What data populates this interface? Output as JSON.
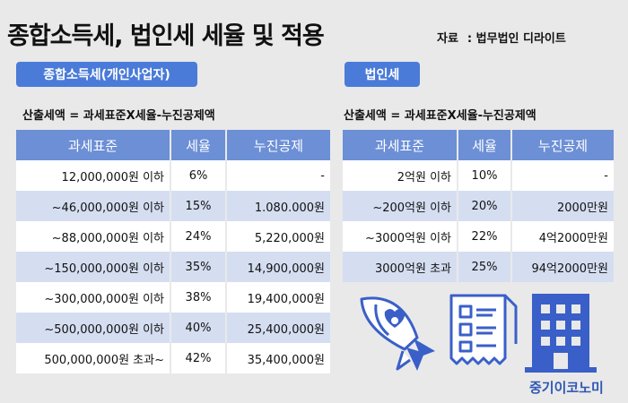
{
  "title": "종합소득세, 법인세 세율 및 적용",
  "source": {
    "label": "자료",
    "value": ": 법무법인 디라이트"
  },
  "individual": {
    "badge": "종합소득세(개인사업자)",
    "formula": "산출세액 = 과세표준X세율-누진공제액",
    "headers": [
      "과세표준",
      "세율",
      "누진공제"
    ],
    "rows": [
      {
        "base": "12,000,000원 이하",
        "rate": "6%",
        "deduction": "-"
      },
      {
        "base": "~46,000,000원 이하",
        "rate": "15%",
        "deduction": "1.080.000원"
      },
      {
        "base": "~88,000,000원 이하",
        "rate": "24%",
        "deduction": "5,220,000원"
      },
      {
        "base": "~150,000,000원 이하",
        "rate": "35%",
        "deduction": "14,900,000원"
      },
      {
        "base": "~300,000,000원 이하",
        "rate": "38%",
        "deduction": "19,400,000원"
      },
      {
        "base": "~500,000,000원 이하",
        "rate": "40%",
        "deduction": "25,400,000원"
      },
      {
        "base": "500,000,000원 초과~",
        "rate": "42%",
        "deduction": "35,400,000원"
      }
    ]
  },
  "corporate": {
    "badge": "법인세",
    "formula": "산출세액 = 과세표준X세율-누진공제액",
    "headers": [
      "과세표준",
      "세율",
      "누진공제"
    ],
    "rows": [
      {
        "base": "2억원 이하",
        "rate": "10%",
        "deduction": "-"
      },
      {
        "base": "~200억원 이하",
        "rate": "20%",
        "deduction": "2000만원"
      },
      {
        "base": "~3000억원 이하",
        "rate": "22%",
        "deduction": "4억2000만원"
      },
      {
        "base": "3000억원 초과",
        "rate": "25%",
        "deduction": "94억2000만원"
      }
    ]
  },
  "icons": [
    "rocket-icon",
    "receipt-icon",
    "building-icon"
  ],
  "colors": {
    "accent": "#4a7bd8",
    "header": "#6c8fd6",
    "row_alt": "#d5def1",
    "icon": "#3a5fc8"
  },
  "brand": "중기이코노미"
}
